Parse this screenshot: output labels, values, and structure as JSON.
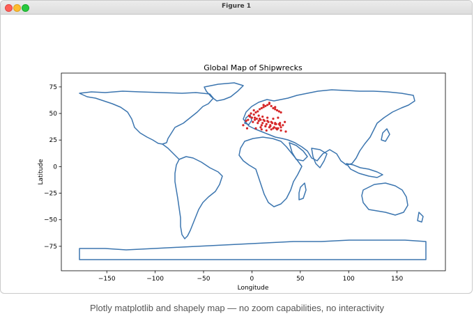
{
  "window": {
    "title": "Figure 1"
  },
  "caption": "Plotly matplotlib and shapely map — no zoom capabilities, no interactivity",
  "chart_data": {
    "type": "scatter",
    "title": "Global Map of Shipwrecks",
    "xlabel": "Longitude",
    "ylabel": "Latitude",
    "xlim": [
      -197,
      200
    ],
    "ylim": [
      -98,
      88
    ],
    "xticks": [
      -150,
      -100,
      -50,
      0,
      50,
      100,
      150
    ],
    "yticks": [
      75,
      50,
      25,
      0,
      -25,
      -50,
      -75
    ],
    "grid": false,
    "outline_color": "#3b75af",
    "marker_color": "#d62728",
    "points": {
      "x": [
        -3,
        -1,
        2,
        4,
        6,
        8,
        10,
        12,
        14,
        16,
        18,
        20,
        22,
        24,
        26,
        28,
        30,
        5,
        9,
        13,
        17,
        21,
        25,
        29,
        0,
        3,
        7,
        11,
        15,
        19,
        23,
        27,
        -4,
        1,
        6,
        10,
        14,
        18,
        22,
        26,
        30,
        35,
        -2,
        3,
        8,
        12,
        16,
        20,
        24,
        28,
        32,
        4,
        9,
        14,
        19,
        24,
        29,
        34,
        -9,
        -6,
        -5,
        2,
        12,
        18,
        24,
        10,
        15,
        20,
        25,
        30,
        7,
        11,
        16,
        22,
        27
      ],
      "y": [
        48,
        50,
        49,
        51,
        52,
        54,
        55,
        56,
        57,
        58,
        59,
        57,
        55,
        54,
        53,
        52,
        51,
        45,
        44,
        43,
        42,
        41,
        40,
        39,
        46,
        44,
        43,
        41,
        40,
        38,
        37,
        36,
        44,
        42,
        41,
        39,
        38,
        37,
        36,
        35,
        34,
        33,
        47,
        46,
        45,
        44,
        43,
        42,
        41,
        40,
        39,
        36,
        37,
        38,
        39,
        40,
        41,
        42,
        39,
        43,
        36,
        53,
        58,
        60,
        56,
        35,
        34,
        35,
        36,
        37,
        48,
        47,
        46,
        45,
        46
      ]
    }
  }
}
